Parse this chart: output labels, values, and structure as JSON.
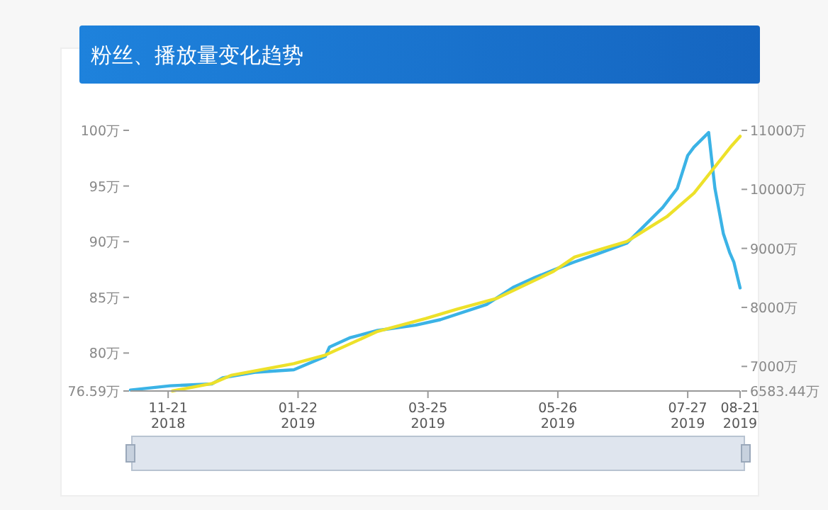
{
  "chart_data": {
    "type": "line",
    "title": "粉丝、播放量变化趋势",
    "marker": "none",
    "line_style": "solid",
    "grid": false,
    "xlim": [
      "2018-11-03",
      "2019-08-21"
    ],
    "xticks": [
      {
        "value": "2018-11-21",
        "label": "11-21\n2018"
      },
      {
        "value": "2019-01-22",
        "label": "01-22\n2019"
      },
      {
        "value": "2019-03-25",
        "label": "03-25\n2019"
      },
      {
        "value": "2019-05-26",
        "label": "05-26\n2019"
      },
      {
        "value": "2019-07-27",
        "label": "07-27\n2019"
      },
      {
        "value": "2019-08-21",
        "label": "08-21\n2019"
      }
    ],
    "ylim": [
      76.59,
      100
    ],
    "yticks": [
      {
        "value": 76.59,
        "label": "76.59万"
      },
      {
        "value": 80,
        "label": "80万"
      },
      {
        "value": 85,
        "label": "85万"
      },
      {
        "value": 90,
        "label": "90万"
      },
      {
        "value": 95,
        "label": "95万"
      },
      {
        "value": 100,
        "label": "100万"
      }
    ],
    "y2lim": [
      6583.44,
      11000
    ],
    "y2ticks": [
      {
        "value": 6583.44,
        "label": "6583.44万"
      },
      {
        "value": 7000,
        "label": "7000万"
      },
      {
        "value": 8000,
        "label": "8000万"
      },
      {
        "value": 9000,
        "label": "9000万"
      },
      {
        "value": 10000,
        "label": "10000万"
      },
      {
        "value": 11000,
        "label": "11000万"
      }
    ],
    "series": [
      {
        "color": "#3bb3e6",
        "x": [
          "2018-11-03",
          "2018-11-22",
          "2018-12-12",
          "2018-12-17",
          "2019-01-02",
          "2019-01-20",
          "2019-02-04",
          "2019-02-06",
          "2019-02-16",
          "2019-03-01",
          "2019-03-19",
          "2019-03-31",
          "2019-04-22",
          "2019-05-05",
          "2019-05-15",
          "2019-05-28",
          "2019-06-03",
          "2019-06-14",
          "2019-06-28",
          "2019-07-06",
          "2019-07-15",
          "2019-07-22",
          "2019-07-27",
          "2019-07-30",
          "2019-08-06",
          "2019-08-09",
          "2019-08-13",
          "2019-08-16",
          "2019-08-18",
          "2019-08-21"
        ],
        "values": [
          76.68,
          77.06,
          77.23,
          77.77,
          78.28,
          78.5,
          79.69,
          80.54,
          81.39,
          82.03,
          82.5,
          83.0,
          84.36,
          85.93,
          86.78,
          87.76,
          88.18,
          88.91,
          89.88,
          91.37,
          93.06,
          94.77,
          97.74,
          98.5,
          99.8,
          94.77,
          90.73,
          89.04,
          88.18,
          85.85
        ]
      },
      {
        "color": "#ede12a",
        "axis": "y2",
        "x": [
          "2018-11-23",
          "2018-12-12",
          "2018-12-21",
          "2019-01-20",
          "2019-02-04",
          "2019-03-01",
          "2019-03-24",
          "2019-04-08",
          "2019-04-27",
          "2019-05-24",
          "2019-06-03",
          "2019-06-28",
          "2019-07-17",
          "2019-07-30",
          "2019-08-08",
          "2019-08-17",
          "2019-08-21"
        ],
        "values": [
          6583.44,
          6711,
          6848,
          7048,
          7192,
          7594,
          7811,
          7972,
          8155,
          8612,
          8853,
          9118,
          9536,
          9936,
          10338,
          10740,
          10899
        ]
      }
    ]
  }
}
